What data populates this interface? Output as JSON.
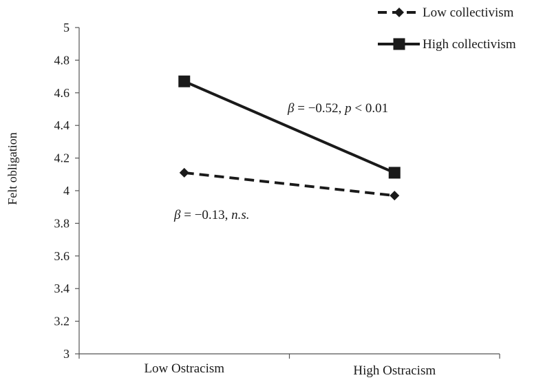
{
  "chart_data": {
    "type": "line",
    "categories": [
      "Low Ostracism",
      "High Ostracism"
    ],
    "series": [
      {
        "name": "Low collectivism",
        "values": [
          4.11,
          3.97
        ],
        "style": "dashed",
        "marker": "diamond"
      },
      {
        "name": "High collectivism",
        "values": [
          4.67,
          4.11
        ],
        "style": "solid",
        "marker": "square"
      }
    ],
    "ylabel": "Felt obligation",
    "xlabel": "",
    "ylim": [
      3,
      5
    ],
    "yticks": [
      "3",
      "3.2",
      "3.4",
      "3.6",
      "3.8",
      "4",
      "4.2",
      "4.4",
      "4.6",
      "4.8",
      "5"
    ],
    "grid": false,
    "legend_position": "top-right",
    "annotations": [
      {
        "series": "High collectivism",
        "beta": "−0.52",
        "sig": "p",
        "op": " < 0.01"
      },
      {
        "series": "Low collectivism",
        "beta": "−0.13",
        "sig": "n.s.",
        "op": ""
      }
    ],
    "colors": {
      "line": "#1a1a1a"
    }
  }
}
